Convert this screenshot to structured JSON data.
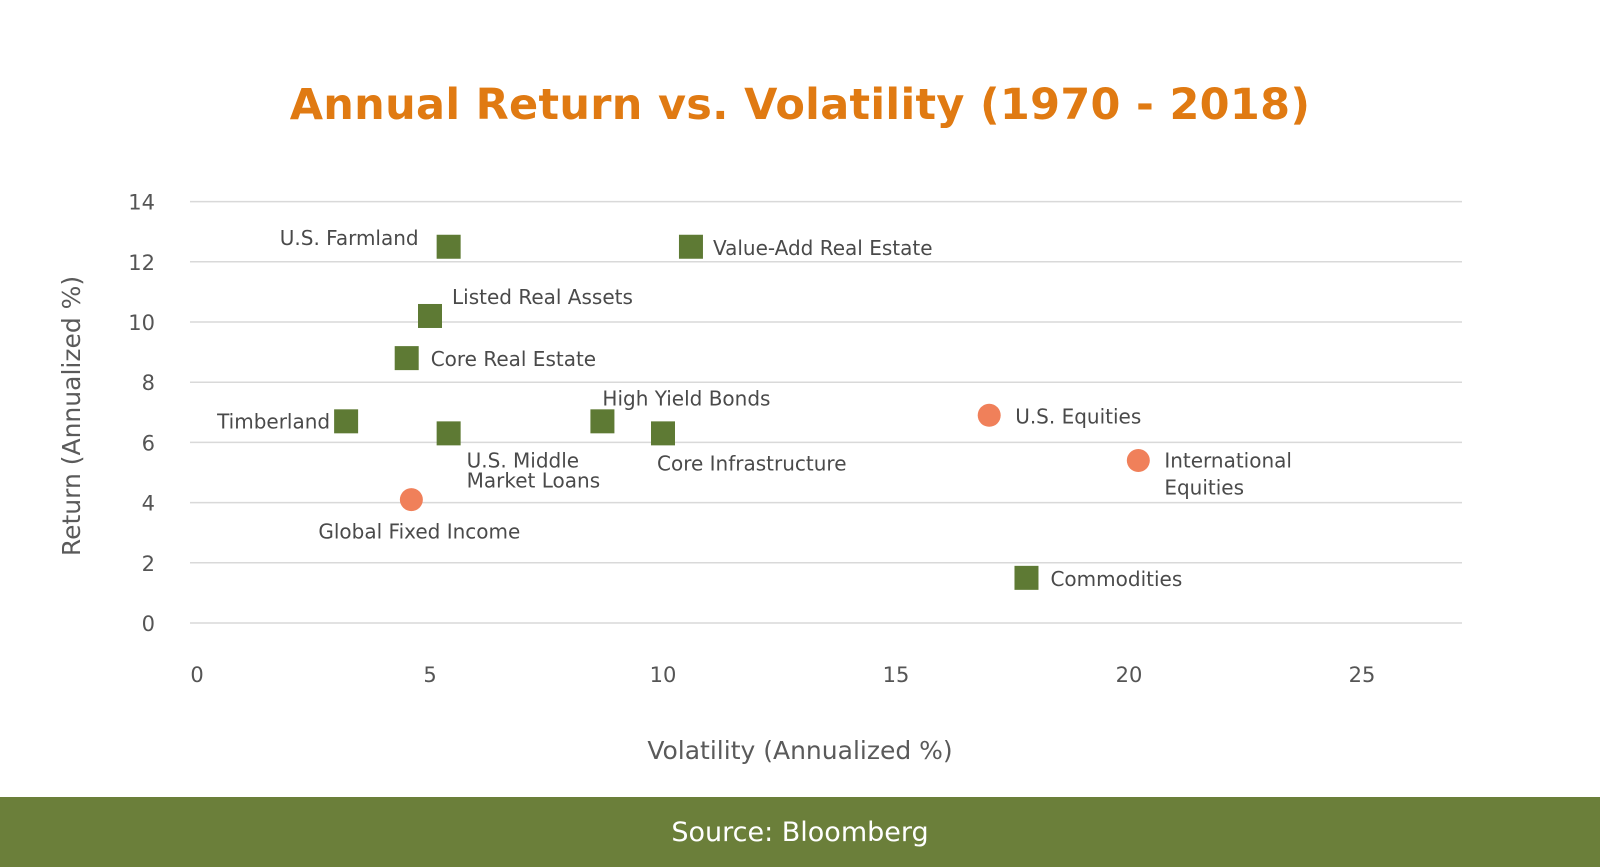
{
  "colors": {
    "title": "#E07A12",
    "square": "#5E7A34",
    "circle": "#F0805A",
    "grid": "#d9d9d9",
    "footer": "#6B7F3A"
  },
  "footer": {
    "text": "Source: Bloomberg"
  },
  "chart_data": {
    "type": "scatter",
    "title": "Annual Return vs. Volatility (1970 - 2018)",
    "xlabel": "Volatility (Annualized %)",
    "ylabel": "Return (Annualized %)",
    "xlim": [
      0,
      27
    ],
    "ylim": [
      0,
      14
    ],
    "x_ticks": [
      0,
      5,
      10,
      15,
      20,
      25
    ],
    "y_ticks": [
      0,
      2,
      4,
      6,
      8,
      10,
      12,
      14
    ],
    "grid": "horizontal",
    "points": [
      {
        "label": "U.S. Farmland",
        "x": 5.4,
        "y": 12.5,
        "marker": "square"
      },
      {
        "label": "Value-Add Real Estate",
        "x": 10.6,
        "y": 12.5,
        "marker": "square"
      },
      {
        "label": "Listed Real Assets",
        "x": 5.0,
        "y": 10.2,
        "marker": "square"
      },
      {
        "label": "Core Real Estate",
        "x": 4.5,
        "y": 8.8,
        "marker": "square"
      },
      {
        "label": "Timberland",
        "x": 3.2,
        "y": 6.7,
        "marker": "square"
      },
      {
        "label": "U.S. Middle Market Loans",
        "x": 5.4,
        "y": 6.3,
        "marker": "square"
      },
      {
        "label": "High Yield Bonds",
        "x": 8.7,
        "y": 6.7,
        "marker": "square"
      },
      {
        "label": "Core Infrastructure",
        "x": 10.0,
        "y": 6.3,
        "marker": "square"
      },
      {
        "label": "U.S. Equities",
        "x": 17.0,
        "y": 6.9,
        "marker": "circle"
      },
      {
        "label": "International Equities",
        "x": 20.2,
        "y": 5.4,
        "marker": "circle"
      },
      {
        "label": "Global Fixed Income",
        "x": 4.6,
        "y": 4.1,
        "marker": "circle"
      },
      {
        "label": "Commodities",
        "x": 17.8,
        "y": 1.5,
        "marker": "square"
      }
    ]
  }
}
